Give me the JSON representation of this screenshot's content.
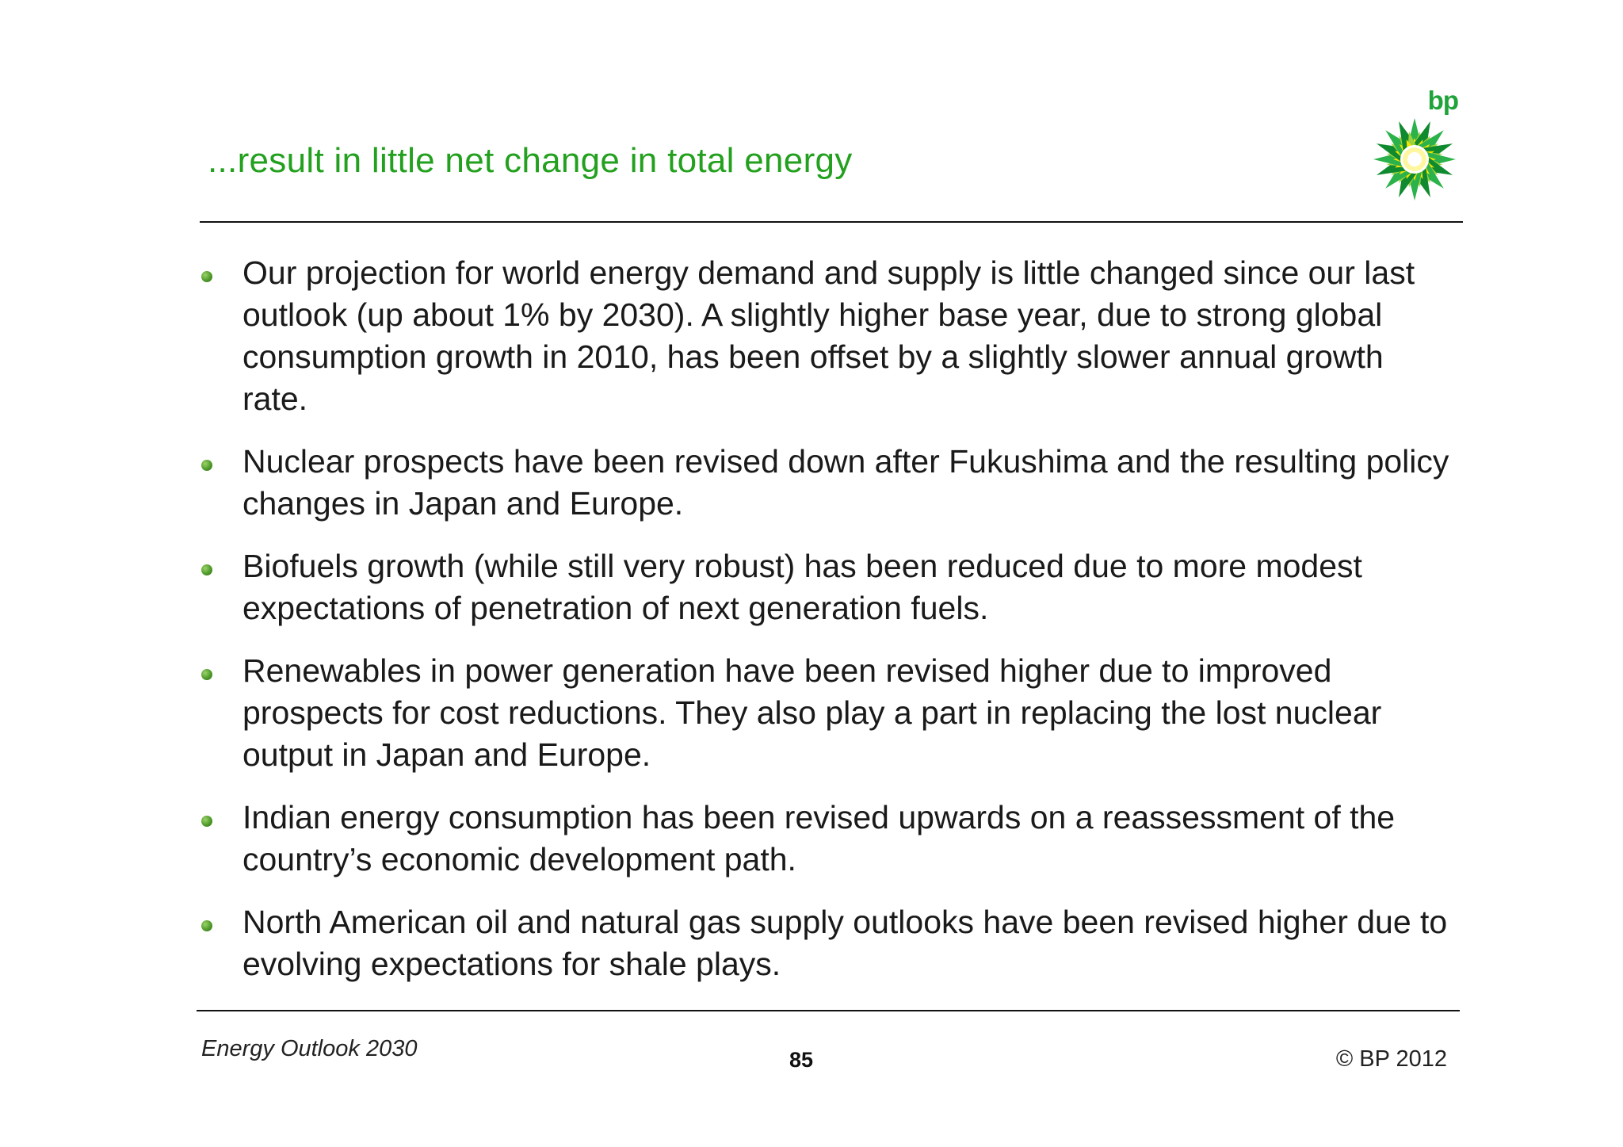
{
  "slide": {
    "title": "...result in little net change in total energy",
    "logo_text": "bp",
    "bullets": [
      "Our projection for world energy demand and supply is little changed since our last outlook (up about 1% by 2030). A slightly higher base year, due to strong global consumption growth in 2010, has been offset by a slightly slower annual growth rate.",
      "Nuclear prospects have been revised down after Fukushima and the resulting policy changes in Japan and Europe.",
      "Biofuels growth (while still very robust) has been reduced due to more modest expectations of penetration of next generation fuels.",
      "Renewables in power generation have been revised higher due to improved prospects for cost reductions. They also play a part in replacing the lost nuclear output in Japan and Europe.",
      "Indian energy consumption has been revised upwards on a reassessment of the country’s economic development path.",
      "North American oil and natural gas supply outlooks have been revised higher due to evolving expectations for shale plays."
    ]
  },
  "footer": {
    "publication": "Energy Outlook 2030",
    "page_number": "85",
    "copyright": "© BP 2012"
  },
  "colors": {
    "title_green": "#22a01e",
    "logo_green": "#1fa33a",
    "logo_yellow": "#f5e400"
  },
  "icons": {
    "logo": "bp-helios-logo",
    "bullet": "green-dot-icon"
  }
}
